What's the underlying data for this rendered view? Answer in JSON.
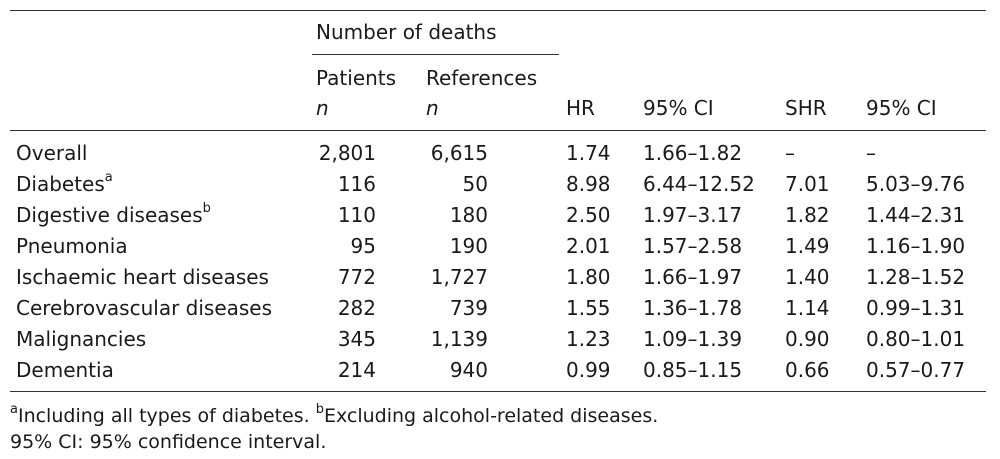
{
  "header": {
    "group_label": "Number of deaths",
    "patients_label": "Patients",
    "patients_sub": "n",
    "references_label": "References",
    "references_sub": "n",
    "hr_label": "HR",
    "ci1_label": "95% CI",
    "shr_label": "SHR",
    "ci2_label": "95% CI"
  },
  "rows": [
    {
      "cause": "Overall",
      "sup": "",
      "patients": "2,801",
      "references": "6,615",
      "hr": "1.74",
      "ci1": "1.66–1.82",
      "shr": "–",
      "ci2": "–"
    },
    {
      "cause": "Diabetes",
      "sup": "a",
      "patients": "116",
      "references": "50",
      "hr": "8.98",
      "ci1": "6.44–12.52",
      "shr": "7.01",
      "ci2": "5.03–9.76"
    },
    {
      "cause": "Digestive diseases",
      "sup": "b",
      "patients": "110",
      "references": "180",
      "hr": "2.50",
      "ci1": "1.97–3.17",
      "shr": "1.82",
      "ci2": "1.44–2.31"
    },
    {
      "cause": "Pneumonia",
      "sup": "",
      "patients": "95",
      "references": "190",
      "hr": "2.01",
      "ci1": "1.57–2.58",
      "shr": "1.49",
      "ci2": "1.16–1.90"
    },
    {
      "cause": "Ischaemic heart diseases",
      "sup": "",
      "patients": "772",
      "references": "1,727",
      "hr": "1.80",
      "ci1": "1.66–1.97",
      "shr": "1.40",
      "ci2": "1.28–1.52"
    },
    {
      "cause": "Cerebrovascular diseases",
      "sup": "",
      "patients": "282",
      "references": "739",
      "hr": "1.55",
      "ci1": "1.36–1.78",
      "shr": "1.14",
      "ci2": "0.99–1.31"
    },
    {
      "cause": "Malignancies",
      "sup": "",
      "patients": "345",
      "references": "1,139",
      "hr": "1.23",
      "ci1": "1.09–1.39",
      "shr": "0.90",
      "ci2": "0.80–1.01"
    },
    {
      "cause": "Dementia",
      "sup": "",
      "patients": "214",
      "references": "940",
      "hr": "0.99",
      "ci1": "0.85–1.15",
      "shr": "0.66",
      "ci2": "0.57–0.77"
    }
  ],
  "footnotes": {
    "a_mark": "a",
    "a_text": "Including all types of diabetes.",
    "b_mark": "b",
    "b_text": "Excluding alcohol-related diseases.",
    "abbrev": "95% CI: 95% confidence interval."
  }
}
